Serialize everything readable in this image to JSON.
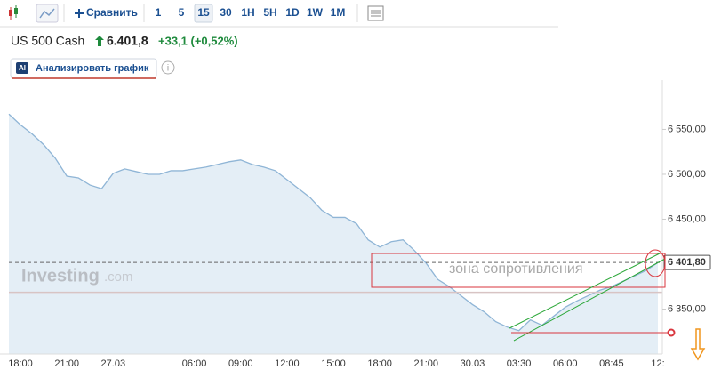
{
  "toolbar": {
    "compare": "Сравнить",
    "timeframes": [
      "1",
      "5",
      "15",
      "30",
      "1H",
      "5H",
      "1D",
      "1W",
      "1M"
    ],
    "active_index": 2
  },
  "header": {
    "title": "US 500 Cash",
    "price": "6.401,8",
    "change": "+33,1 (+0,52%)"
  },
  "ai_button": {
    "badge": "AI",
    "label": "Анализировать график"
  },
  "info_icon": "i",
  "watermark": {
    "brand": "Investing",
    "suffix": ".com"
  },
  "chart_data": {
    "type": "area",
    "categories": [
      null,
      "18:00",
      null,
      null,
      null,
      "21:00",
      null,
      null,
      null,
      "27.03",
      null,
      null,
      null,
      null,
      null,
      null,
      "06:00",
      null,
      null,
      null,
      "09:00",
      null,
      null,
      null,
      "12:00",
      null,
      null,
      null,
      "15:00",
      null,
      null,
      null,
      "18:00",
      null,
      null,
      null,
      "21:00",
      null,
      null,
      null,
      "30.03",
      null,
      null,
      null,
      "03:30",
      null,
      null,
      null,
      "06:00",
      null,
      null,
      null,
      "08:45",
      null,
      null,
      null,
      "12:"
    ],
    "values": [
      6567,
      6555,
      6545,
      6533,
      6518,
      6498,
      6496,
      6488,
      6484,
      6501,
      6506,
      6503,
      6500,
      6500,
      6504,
      6504,
      6506,
      6508,
      6511,
      6514,
      6516,
      6511,
      6508,
      6504,
      6494,
      6484,
      6474,
      6460,
      6452,
      6452,
      6445,
      6427,
      6419,
      6425,
      6427,
      6415,
      6401,
      6383,
      6375,
      6365,
      6355,
      6347,
      6336,
      6330,
      6326,
      6338,
      6332,
      6342,
      6352,
      6359,
      6365,
      6371,
      6375,
      6381,
      6387,
      6393,
      6401.8
    ],
    "color": "#8fb5d6",
    "fill": "#e4eef6",
    "ylim": [
      6300,
      6595
    ],
    "yticks": [
      {
        "value": 6350,
        "label": "6 350,00"
      },
      {
        "value": 6450,
        "label": "6 450,00"
      },
      {
        "value": 6500,
        "label": "6 500,00"
      },
      {
        "value": 6550,
        "label": "6 550,00"
      }
    ],
    "last_price": {
      "value": 6401.8,
      "label": "6 401,80"
    },
    "previous_close": 6368.7,
    "annotation": "зона сопротивления"
  }
}
